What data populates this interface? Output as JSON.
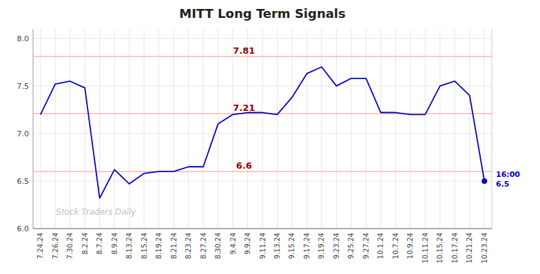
{
  "chart_data": {
    "type": "line",
    "title": "MITT Long Term Signals",
    "categories": [
      "7.24.24",
      "7.26.24",
      "7.30.24",
      "8.2.24",
      "8.7.24",
      "8.9.24",
      "8.13.24",
      "8.15.24",
      "8.19.24",
      "8.21.24",
      "8.23.24",
      "8.27.24",
      "8.30.24",
      "9.4.24",
      "9.9.24",
      "9.11.24",
      "9.13.24",
      "9.15.24",
      "9.17.24",
      "9.19.24",
      "9.23.24",
      "9.25.24",
      "9.27.24",
      "10.1.24",
      "10.7.24",
      "10.9.24",
      "10.11.24",
      "10.15.24",
      "10.17.24",
      "10.21.24",
      "10.23.24"
    ],
    "values": [
      7.2,
      7.52,
      7.55,
      7.48,
      6.32,
      6.62,
      6.47,
      6.58,
      6.6,
      6.6,
      6.65,
      6.65,
      7.1,
      7.2,
      7.22,
      7.22,
      7.2,
      7.38,
      7.63,
      7.7,
      7.5,
      7.58,
      7.58,
      7.22,
      7.22,
      7.2,
      7.2,
      7.5,
      7.55,
      7.4,
      6.5
    ],
    "color": "#0000cc",
    "ylim": [
      6.0,
      8.1
    ],
    "yticks": [
      {
        "value": 6.0,
        "label": "6.0"
      },
      6.5,
      {
        "value": 7.0,
        "label": "7.0"
      },
      7.5,
      {
        "value": 8.0,
        "label": "8.0"
      }
    ],
    "grid": true,
    "hlines": [
      {
        "value": 7.81,
        "label": "7.81",
        "color": "#ffb3b3"
      },
      {
        "value": 7.21,
        "label": "7.21",
        "color": "#ffb3b3"
      },
      {
        "value": 6.6,
        "label": "6.6",
        "color": "#ffb3b3"
      }
    ],
    "annotations": [
      {
        "text": "16:00"
      },
      {
        "text": "6.5"
      },
      {
        "text": "Stock Traders Daily"
      }
    ]
  }
}
